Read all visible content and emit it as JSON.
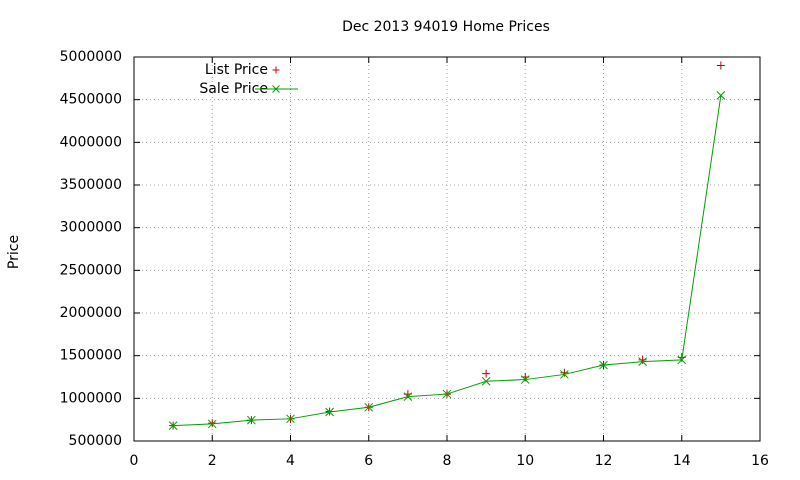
{
  "chart_data": {
    "type": "line",
    "title": "Dec 2013 94019 Home Prices",
    "y_label": "Price",
    "x": [
      1,
      2,
      3,
      4,
      5,
      6,
      7,
      8,
      9,
      10,
      11,
      12,
      13,
      14,
      15
    ],
    "series": [
      {
        "name": "List Price",
        "color": "#cc0000",
        "style": "points",
        "marker": "+",
        "values": [
          680000,
          710000,
          745000,
          760000,
          845000,
          895000,
          1050000,
          1050000,
          1290000,
          1250000,
          1300000,
          1390000,
          1450000,
          1480000,
          4900000
        ]
      },
      {
        "name": "Sale Price",
        "color": "#00a000",
        "style": "linespoints",
        "marker": "x",
        "values": [
          680000,
          700000,
          745000,
          760000,
          840000,
          895000,
          1020000,
          1050000,
          1200000,
          1220000,
          1280000,
          1390000,
          1430000,
          1450000,
          4550000
        ]
      }
    ],
    "xlim": [
      0,
      16
    ],
    "xticks": [
      0,
      2,
      4,
      6,
      8,
      10,
      12,
      14,
      16
    ],
    "ylim": [
      500000,
      5000000
    ],
    "yticks": [
      500000,
      1000000,
      1500000,
      2000000,
      2500000,
      3000000,
      3500000,
      4000000,
      4500000,
      5000000
    ],
    "grid": true,
    "legend": "top-left"
  }
}
